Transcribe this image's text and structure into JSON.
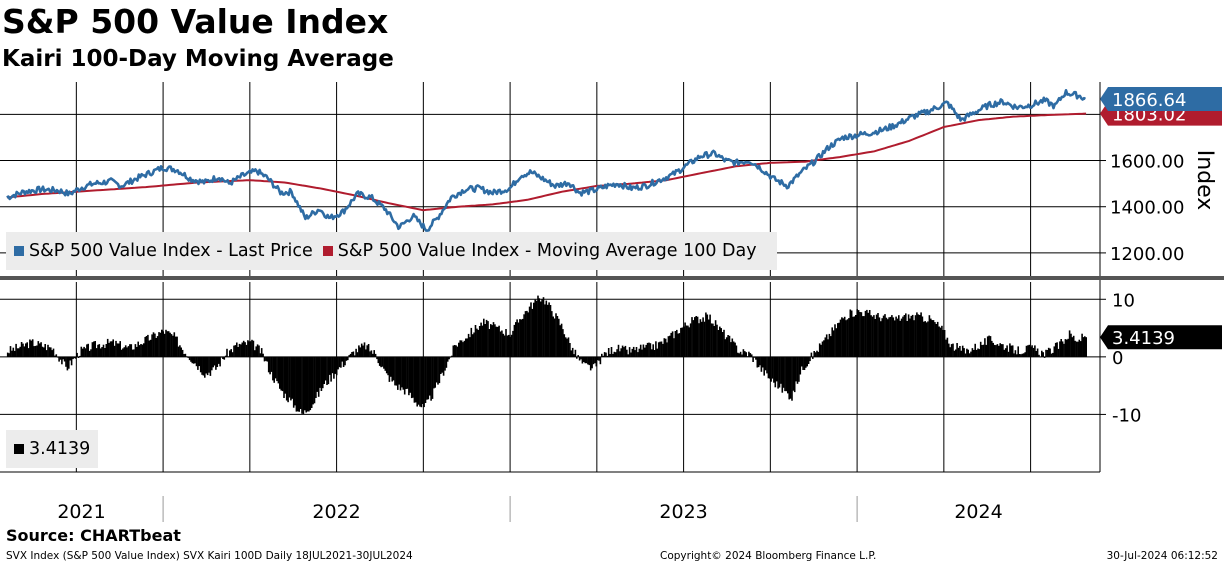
{
  "header": {
    "title": "S&P 500 Value Index",
    "subtitle": "Kairi 100-Day Moving Average"
  },
  "footer": {
    "source": "Source: CHARTbeat",
    "left": "SVX Index (S&P 500 Value Index) SVX Kairi 100D  Daily 18JUL2021-30JUL2024",
    "center": "Copyright© 2024 Bloomberg Finance L.P.",
    "right": "30-Jul-2024 06:12:52"
  },
  "colors": {
    "price": "#2e6ca4",
    "ma": "#b01c2e",
    "kairi": "#000000",
    "legend_bg": "#ececec"
  },
  "chart_data": [
    {
      "type": "line",
      "title": "S&P 500 Value Index",
      "ylabel": "Index",
      "ylim": [
        1100,
        1940
      ],
      "yticks": [
        "1200.00",
        "1400.00",
        "1600.00"
      ],
      "x_tick_labels": [
        "2021",
        "2022",
        "2023",
        "2024"
      ],
      "series": [
        {
          "name": "S&P 500 Value Index - Last Price",
          "last_value_label": "1866.64",
          "points": [
            [
              2021.55,
              1440
            ],
            [
              2021.6,
              1465
            ],
            [
              2021.65,
              1475
            ],
            [
              2021.7,
              1470
            ],
            [
              2021.73,
              1455
            ],
            [
              2021.76,
              1480
            ],
            [
              2021.8,
              1500
            ],
            [
              2021.85,
              1510
            ],
            [
              2021.88,
              1490
            ],
            [
              2021.92,
              1520
            ],
            [
              2021.96,
              1545
            ],
            [
              2022.0,
              1570
            ],
            [
              2022.04,
              1560
            ],
            [
              2022.08,
              1520
            ],
            [
              2022.12,
              1505
            ],
            [
              2022.16,
              1530
            ],
            [
              2022.19,
              1500
            ],
            [
              2022.23,
              1535
            ],
            [
              2022.27,
              1555
            ],
            [
              2022.3,
              1525
            ],
            [
              2022.34,
              1460
            ],
            [
              2022.37,
              1465
            ],
            [
              2022.41,
              1350
            ],
            [
              2022.45,
              1390
            ],
            [
              2022.48,
              1350
            ],
            [
              2022.52,
              1380
            ],
            [
              2022.56,
              1455
            ],
            [
              2022.6,
              1440
            ],
            [
              2022.64,
              1390
            ],
            [
              2022.68,
              1310
            ],
            [
              2022.72,
              1360
            ],
            [
              2022.76,
              1300
            ],
            [
              2022.79,
              1350
            ],
            [
              2022.83,
              1440
            ],
            [
              2022.87,
              1475
            ],
            [
              2022.91,
              1480
            ],
            [
              2022.95,
              1460
            ],
            [
              2023.0,
              1480
            ],
            [
              2023.03,
              1535
            ],
            [
              2023.06,
              1550
            ],
            [
              2023.09,
              1525
            ],
            [
              2023.13,
              1490
            ],
            [
              2023.17,
              1505
            ],
            [
              2023.2,
              1460
            ],
            [
              2023.24,
              1470
            ],
            [
              2023.28,
              1490
            ],
            [
              2023.31,
              1500
            ],
            [
              2023.35,
              1480
            ],
            [
              2023.39,
              1490
            ],
            [
              2023.43,
              1515
            ],
            [
              2023.47,
              1540
            ],
            [
              2023.51,
              1580
            ],
            [
              2023.55,
              1620
            ],
            [
              2023.59,
              1630
            ],
            [
              2023.62,
              1600
            ],
            [
              2023.65,
              1590
            ],
            [
              2023.69,
              1600
            ],
            [
              2023.72,
              1570
            ],
            [
              2023.76,
              1520
            ],
            [
              2023.8,
              1490
            ],
            [
              2023.84,
              1550
            ],
            [
              2023.88,
              1600
            ],
            [
              2023.92,
              1660
            ],
            [
              2023.96,
              1700
            ],
            [
              2024.0,
              1710
            ],
            [
              2024.04,
              1720
            ],
            [
              2024.08,
              1735
            ],
            [
              2024.12,
              1760
            ],
            [
              2024.16,
              1790
            ],
            [
              2024.2,
              1810
            ],
            [
              2024.23,
              1830
            ],
            [
              2024.26,
              1850
            ],
            [
              2024.3,
              1775
            ],
            [
              2024.34,
              1810
            ],
            [
              2024.38,
              1840
            ],
            [
              2024.42,
              1855
            ],
            [
              2024.46,
              1830
            ],
            [
              2024.5,
              1840
            ],
            [
              2024.54,
              1860
            ],
            [
              2024.57,
              1835
            ],
            [
              2024.6,
              1895
            ],
            [
              2024.64,
              1880
            ],
            [
              2024.66,
              1866.64
            ]
          ]
        },
        {
          "name": "S&P 500 Value Index - Moving Average 100 Day",
          "last_value_label": "1803.02",
          "points": [
            [
              2021.55,
              1440
            ],
            [
              2021.65,
              1455
            ],
            [
              2021.8,
              1470
            ],
            [
              2021.95,
              1485
            ],
            [
              2022.1,
              1505
            ],
            [
              2022.25,
              1515
            ],
            [
              2022.35,
              1505
            ],
            [
              2022.45,
              1480
            ],
            [
              2022.55,
              1450
            ],
            [
              2022.65,
              1415
            ],
            [
              2022.75,
              1385
            ],
            [
              2022.85,
              1400
            ],
            [
              2022.95,
              1410
            ],
            [
              2023.05,
              1430
            ],
            [
              2023.15,
              1465
            ],
            [
              2023.25,
              1490
            ],
            [
              2023.35,
              1500
            ],
            [
              2023.45,
              1515
            ],
            [
              2023.55,
              1545
            ],
            [
              2023.65,
              1575
            ],
            [
              2023.75,
              1590
            ],
            [
              2023.85,
              1595
            ],
            [
              2023.95,
              1615
            ],
            [
              2024.05,
              1640
            ],
            [
              2024.15,
              1685
            ],
            [
              2024.25,
              1745
            ],
            [
              2024.35,
              1775
            ],
            [
              2024.45,
              1790
            ],
            [
              2024.55,
              1797
            ],
            [
              2024.66,
              1803.02
            ]
          ]
        }
      ]
    },
    {
      "type": "bar",
      "title": "Kairi 100-Day Moving Average",
      "ylim": [
        -20,
        13
      ],
      "yticks": [
        "10",
        "0",
        "-10"
      ],
      "series": [
        {
          "name": "Kairi 100D",
          "legend_label": "3.4139",
          "last_value_label": "3.4139",
          "points": [
            [
              2021.55,
              1
            ],
            [
              2021.62,
              2.5
            ],
            [
              2021.68,
              1.5
            ],
            [
              2021.72,
              -2
            ],
            [
              2021.76,
              1
            ],
            [
              2021.8,
              2
            ],
            [
              2021.85,
              2.5
            ],
            [
              2021.9,
              1.5
            ],
            [
              2021.95,
              3
            ],
            [
              2022.0,
              4.5
            ],
            [
              2022.03,
              3.5
            ],
            [
              2022.06,
              1
            ],
            [
              2022.09,
              -1
            ],
            [
              2022.12,
              -3
            ],
            [
              2022.15,
              -2
            ],
            [
              2022.18,
              0.5
            ],
            [
              2022.21,
              2
            ],
            [
              2022.25,
              2.5
            ],
            [
              2022.28,
              1
            ],
            [
              2022.31,
              -3
            ],
            [
              2022.34,
              -6
            ],
            [
              2022.37,
              -8
            ],
            [
              2022.4,
              -10
            ],
            [
              2022.43,
              -8
            ],
            [
              2022.46,
              -5
            ],
            [
              2022.49,
              -3
            ],
            [
              2022.52,
              -1
            ],
            [
              2022.55,
              1
            ],
            [
              2022.58,
              2
            ],
            [
              2022.61,
              0.5
            ],
            [
              2022.64,
              -3
            ],
            [
              2022.67,
              -5
            ],
            [
              2022.7,
              -6
            ],
            [
              2022.73,
              -8
            ],
            [
              2022.75,
              -9
            ],
            [
              2022.78,
              -6
            ],
            [
              2022.81,
              -2
            ],
            [
              2022.84,
              2
            ],
            [
              2022.88,
              4
            ],
            [
              2022.92,
              6
            ],
            [
              2022.96,
              5
            ],
            [
              2023.0,
              4
            ],
            [
              2023.03,
              7
            ],
            [
              2023.06,
              9
            ],
            [
              2023.09,
              10.5
            ],
            [
              2023.12,
              8
            ],
            [
              2023.15,
              5
            ],
            [
              2023.18,
              1
            ],
            [
              2023.21,
              -1.5
            ],
            [
              2023.24,
              -2
            ],
            [
              2023.27,
              0.5
            ],
            [
              2023.3,
              1.5
            ],
            [
              2023.34,
              1
            ],
            [
              2023.38,
              1.5
            ],
            [
              2023.42,
              2
            ],
            [
              2023.45,
              3
            ],
            [
              2023.49,
              5
            ],
            [
              2023.53,
              6.5
            ],
            [
              2023.57,
              7
            ],
            [
              2023.6,
              5
            ],
            [
              2023.63,
              3
            ],
            [
              2023.66,
              1
            ],
            [
              2023.69,
              0.5
            ],
            [
              2023.72,
              -2
            ],
            [
              2023.75,
              -4
            ],
            [
              2023.78,
              -5.5
            ],
            [
              2023.81,
              -7
            ],
            [
              2023.84,
              -2
            ],
            [
              2023.88,
              1
            ],
            [
              2023.92,
              4
            ],
            [
              2023.96,
              7
            ],
            [
              2024.0,
              8
            ],
            [
              2024.03,
              7.5
            ],
            [
              2024.06,
              7
            ],
            [
              2024.1,
              6.5
            ],
            [
              2024.14,
              7
            ],
            [
              2024.18,
              7
            ],
            [
              2024.21,
              6.5
            ],
            [
              2024.24,
              5
            ],
            [
              2024.27,
              2
            ],
            [
              2024.31,
              1
            ],
            [
              2024.35,
              2
            ],
            [
              2024.38,
              3
            ],
            [
              2024.42,
              2
            ],
            [
              2024.46,
              1
            ],
            [
              2024.5,
              1.5
            ],
            [
              2024.54,
              0.5
            ],
            [
              2024.58,
              2
            ],
            [
              2024.61,
              4
            ],
            [
              2024.63,
              3
            ],
            [
              2024.66,
              3.4139
            ]
          ]
        }
      ]
    }
  ]
}
